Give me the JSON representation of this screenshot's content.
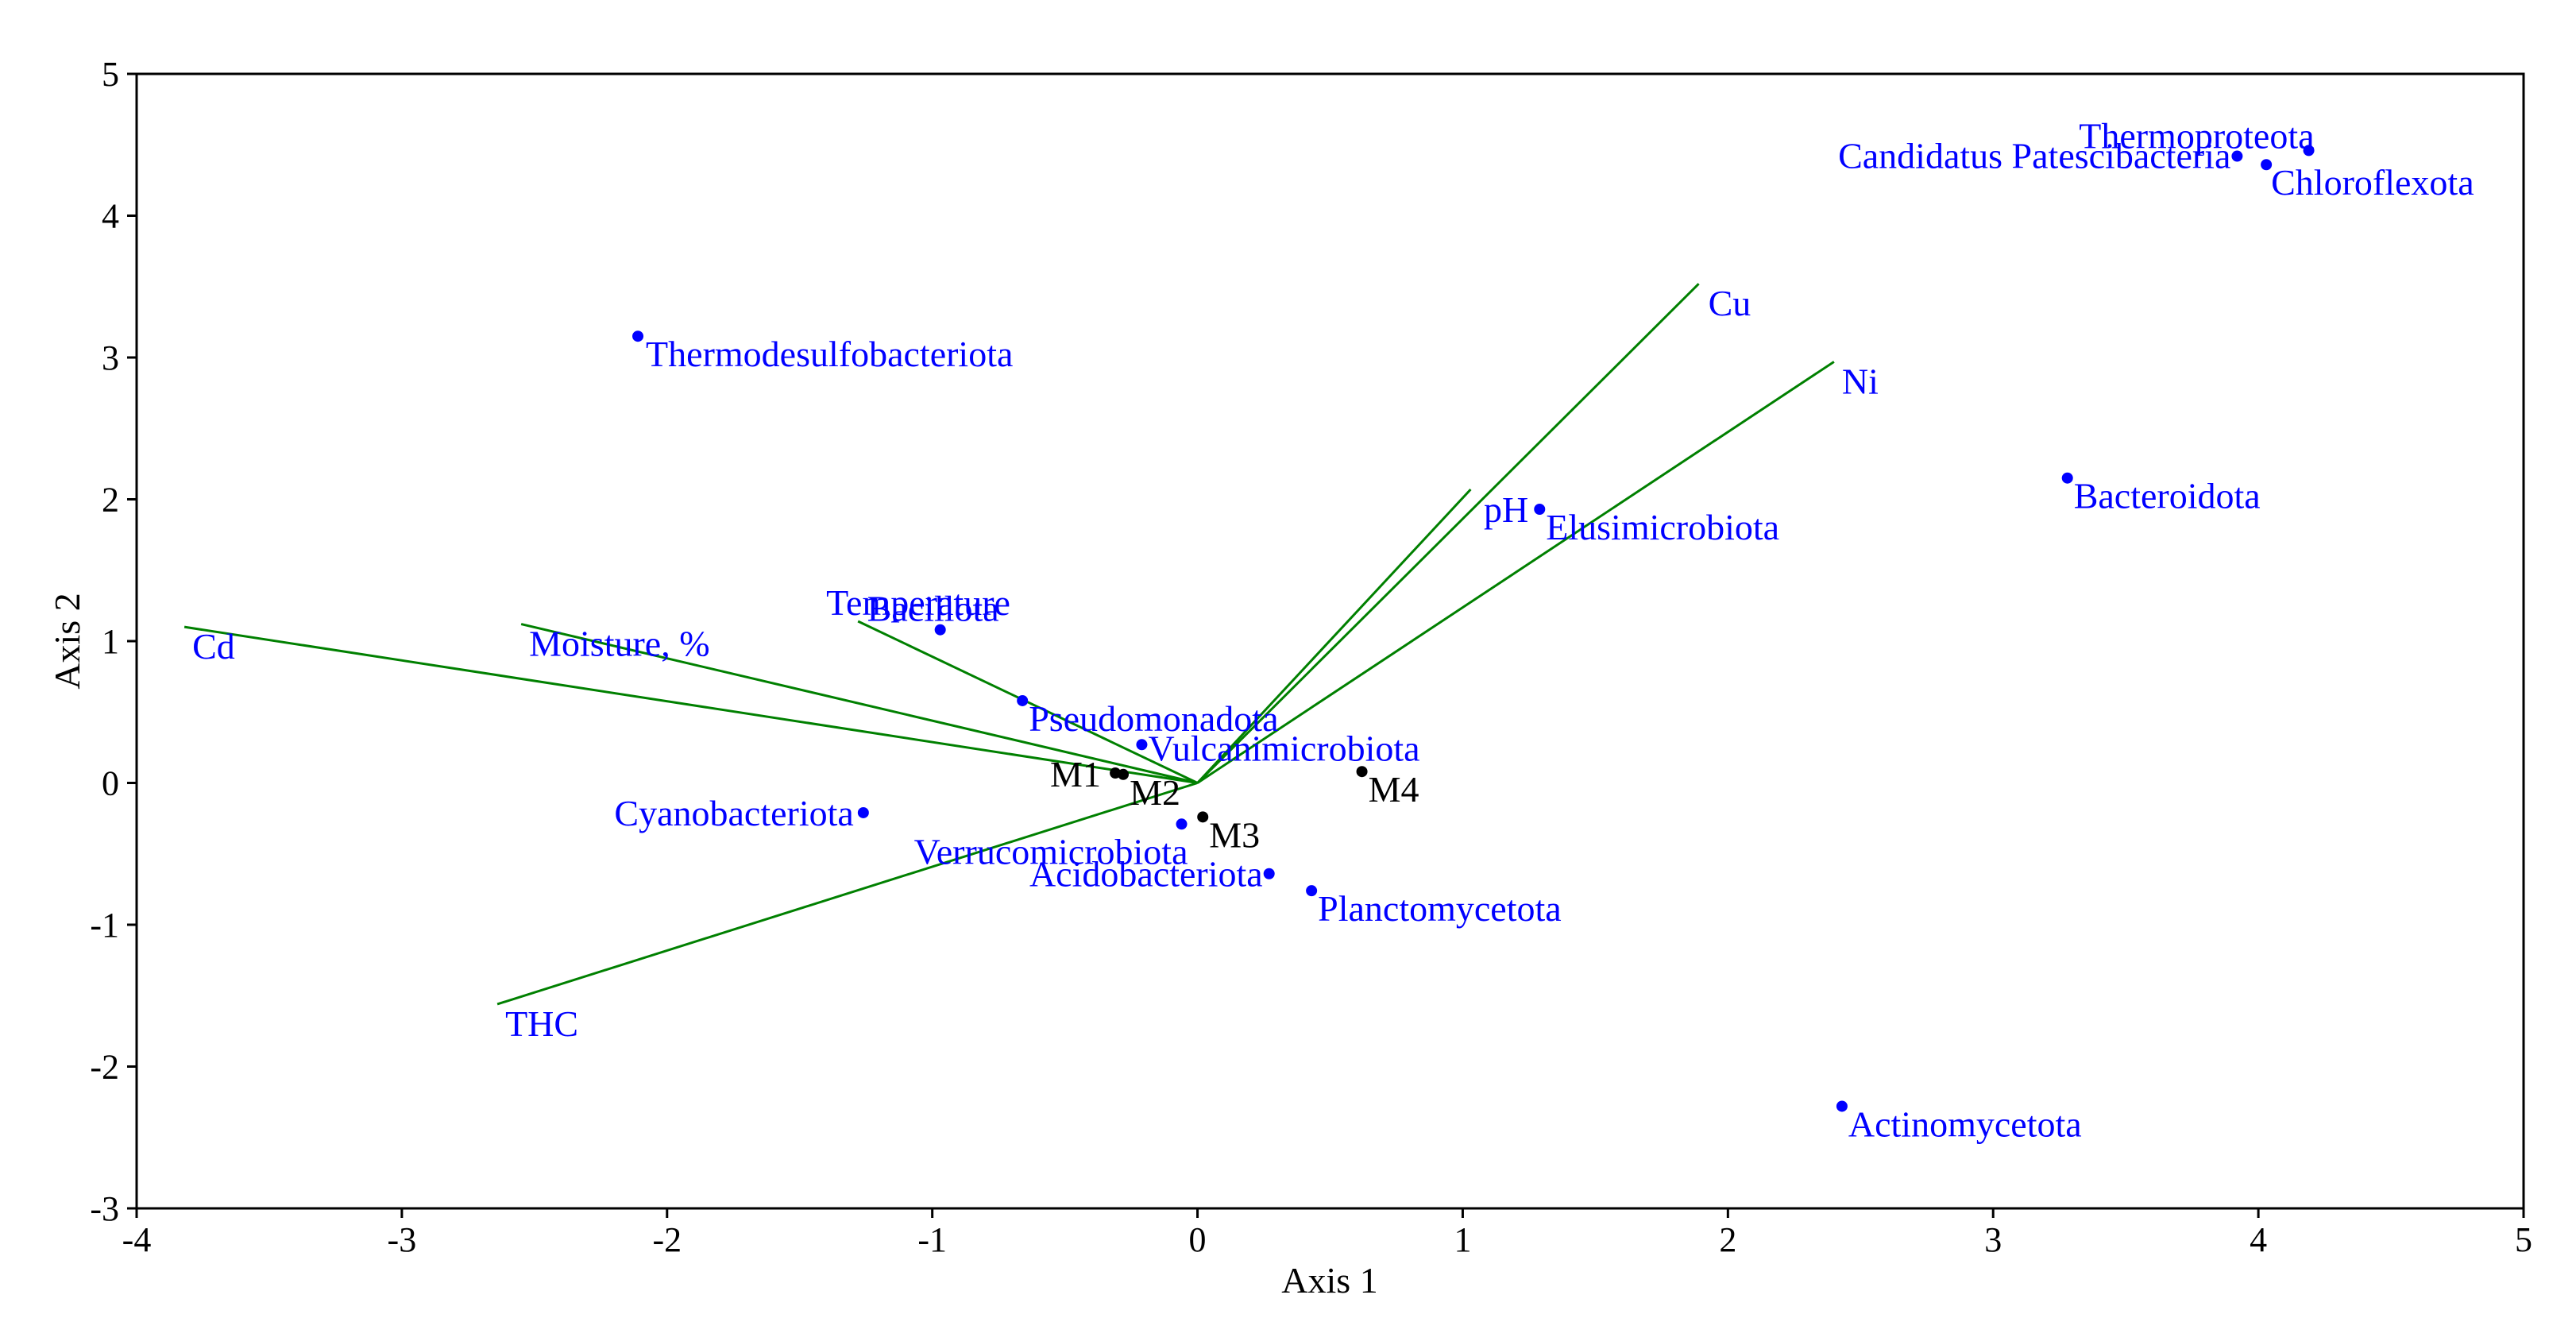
{
  "chart_data": {
    "type": "scatter",
    "xlabel": "Axis 1",
    "ylabel": "Axis 2",
    "xlim": [
      -4,
      5
    ],
    "ylim": [
      -3,
      5
    ],
    "xticks": [
      -4,
      -3,
      -2,
      -1,
      0,
      1,
      2,
      3,
      4,
      5
    ],
    "yticks": [
      -3,
      -2,
      -1,
      0,
      1,
      2,
      3,
      4,
      5
    ],
    "grid": false,
    "colors": {
      "taxa": "#0000ff",
      "samples": "#000000",
      "vectors": "#008000"
    },
    "taxa": [
      {
        "label": "Thermoproteota",
        "x": 4.19,
        "y": 4.46
      },
      {
        "label": "Candidatus Patescibacteria",
        "x": 3.92,
        "y": 4.42
      },
      {
        "label": "Chloroflexota",
        "x": 4.03,
        "y": 4.36
      },
      {
        "label": "Thermodesulfobacteriota",
        "x": -2.11,
        "y": 3.15
      },
      {
        "label": "Bacteroidota",
        "x": 3.28,
        "y": 2.15
      },
      {
        "label": "Elusimicrobiota",
        "x": 1.29,
        "y": 1.93
      },
      {
        "label": "Bacillota",
        "x": -0.97,
        "y": 1.08
      },
      {
        "label": "Pseudomonadota",
        "x": -0.66,
        "y": 0.58
      },
      {
        "label": "Vulcanimicrobiota",
        "x": -0.21,
        "y": 0.27
      },
      {
        "label": "Cyanobacteriota",
        "x": -1.26,
        "y": -0.21
      },
      {
        "label": "Verrucomicrobiota",
        "x": -0.06,
        "y": -0.29
      },
      {
        "label": "Acidobacteriota",
        "x": 0.27,
        "y": -0.64
      },
      {
        "label": "Planctomycetota",
        "x": 0.43,
        "y": -0.76
      },
      {
        "label": "Actinomycetota",
        "x": 2.43,
        "y": -2.28
      }
    ],
    "samples": [
      {
        "label": "M1",
        "x": -0.31,
        "y": 0.07
      },
      {
        "label": "M2",
        "x": -0.28,
        "y": 0.06
      },
      {
        "label": "M3",
        "x": 0.02,
        "y": -0.24
      },
      {
        "label": "M4",
        "x": 0.62,
        "y": 0.08
      }
    ],
    "vectors": [
      {
        "label": "Cd",
        "x": -3.82,
        "y": 1.1
      },
      {
        "label": "Moisture, %",
        "x": -2.55,
        "y": 1.12
      },
      {
        "label": "Temperature",
        "x": -1.28,
        "y": 1.14
      },
      {
        "label": "pH",
        "x": 1.03,
        "y": 2.07
      },
      {
        "label": "Cu",
        "x": 1.89,
        "y": 3.52
      },
      {
        "label": "Ni",
        "x": 2.4,
        "y": 2.97
      },
      {
        "label": "THC",
        "x": -2.64,
        "y": -1.56
      }
    ]
  }
}
